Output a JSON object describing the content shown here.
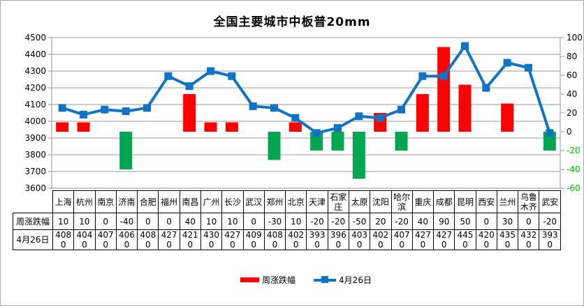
{
  "title": "全国主要城市中板普20mm",
  "chart_data": {
    "type": "combo-bar-line",
    "title": "全国主要城市中板普20mm",
    "categories": [
      "上海",
      "杭州",
      "南京",
      "济南",
      "合肥",
      "福州",
      "南昌",
      "广州",
      "长沙",
      "武汉",
      "郑州",
      "北京",
      "天津",
      "石家庄",
      "太原",
      "沈阳",
      "哈尔滨",
      "重庆",
      "成都",
      "昆明",
      "西安",
      "兰州",
      "乌鲁木齐",
      "武安"
    ],
    "series": [
      {
        "name": "周涨跌幅",
        "type": "bar",
        "axis": "right",
        "values": [
          10,
          10,
          0,
          -40,
          0,
          0,
          40,
          10,
          10,
          0,
          -30,
          10,
          -20,
          -20,
          -50,
          20,
          -20,
          40,
          90,
          50,
          0,
          30,
          0,
          -20
        ],
        "positive_color": "#FF0000",
        "negative_color": "#00A650"
      },
      {
        "name": "4月26日",
        "type": "line",
        "axis": "left",
        "values": [
          4080,
          4040,
          4070,
          4060,
          4080,
          4270,
          4210,
          4300,
          4270,
          4090,
          4080,
          4020,
          3930,
          3960,
          4030,
          4020,
          4070,
          4270,
          4270,
          4450,
          4200,
          4350,
          4320,
          3930
        ],
        "color": "#1173C4",
        "marker": "square"
      }
    ],
    "left_axis": {
      "min": 3600,
      "max": 4500,
      "step": 100,
      "label_color": "#000000"
    },
    "right_axis": {
      "min": -60,
      "max": 100,
      "step": 20,
      "positive_label_color": "#000000",
      "negative_label_color": "#00C000"
    },
    "gridline_color": "#999999",
    "grid": true,
    "legend_position": "bottom",
    "table_row_labels": [
      "周涨跌幅",
      "4月26日"
    ]
  },
  "legend": {
    "items": [
      {
        "label": "周涨跌幅",
        "type": "bar",
        "color": "#FF0000"
      },
      {
        "label": "4月26日",
        "type": "line",
        "color": "#1173C4"
      }
    ]
  }
}
